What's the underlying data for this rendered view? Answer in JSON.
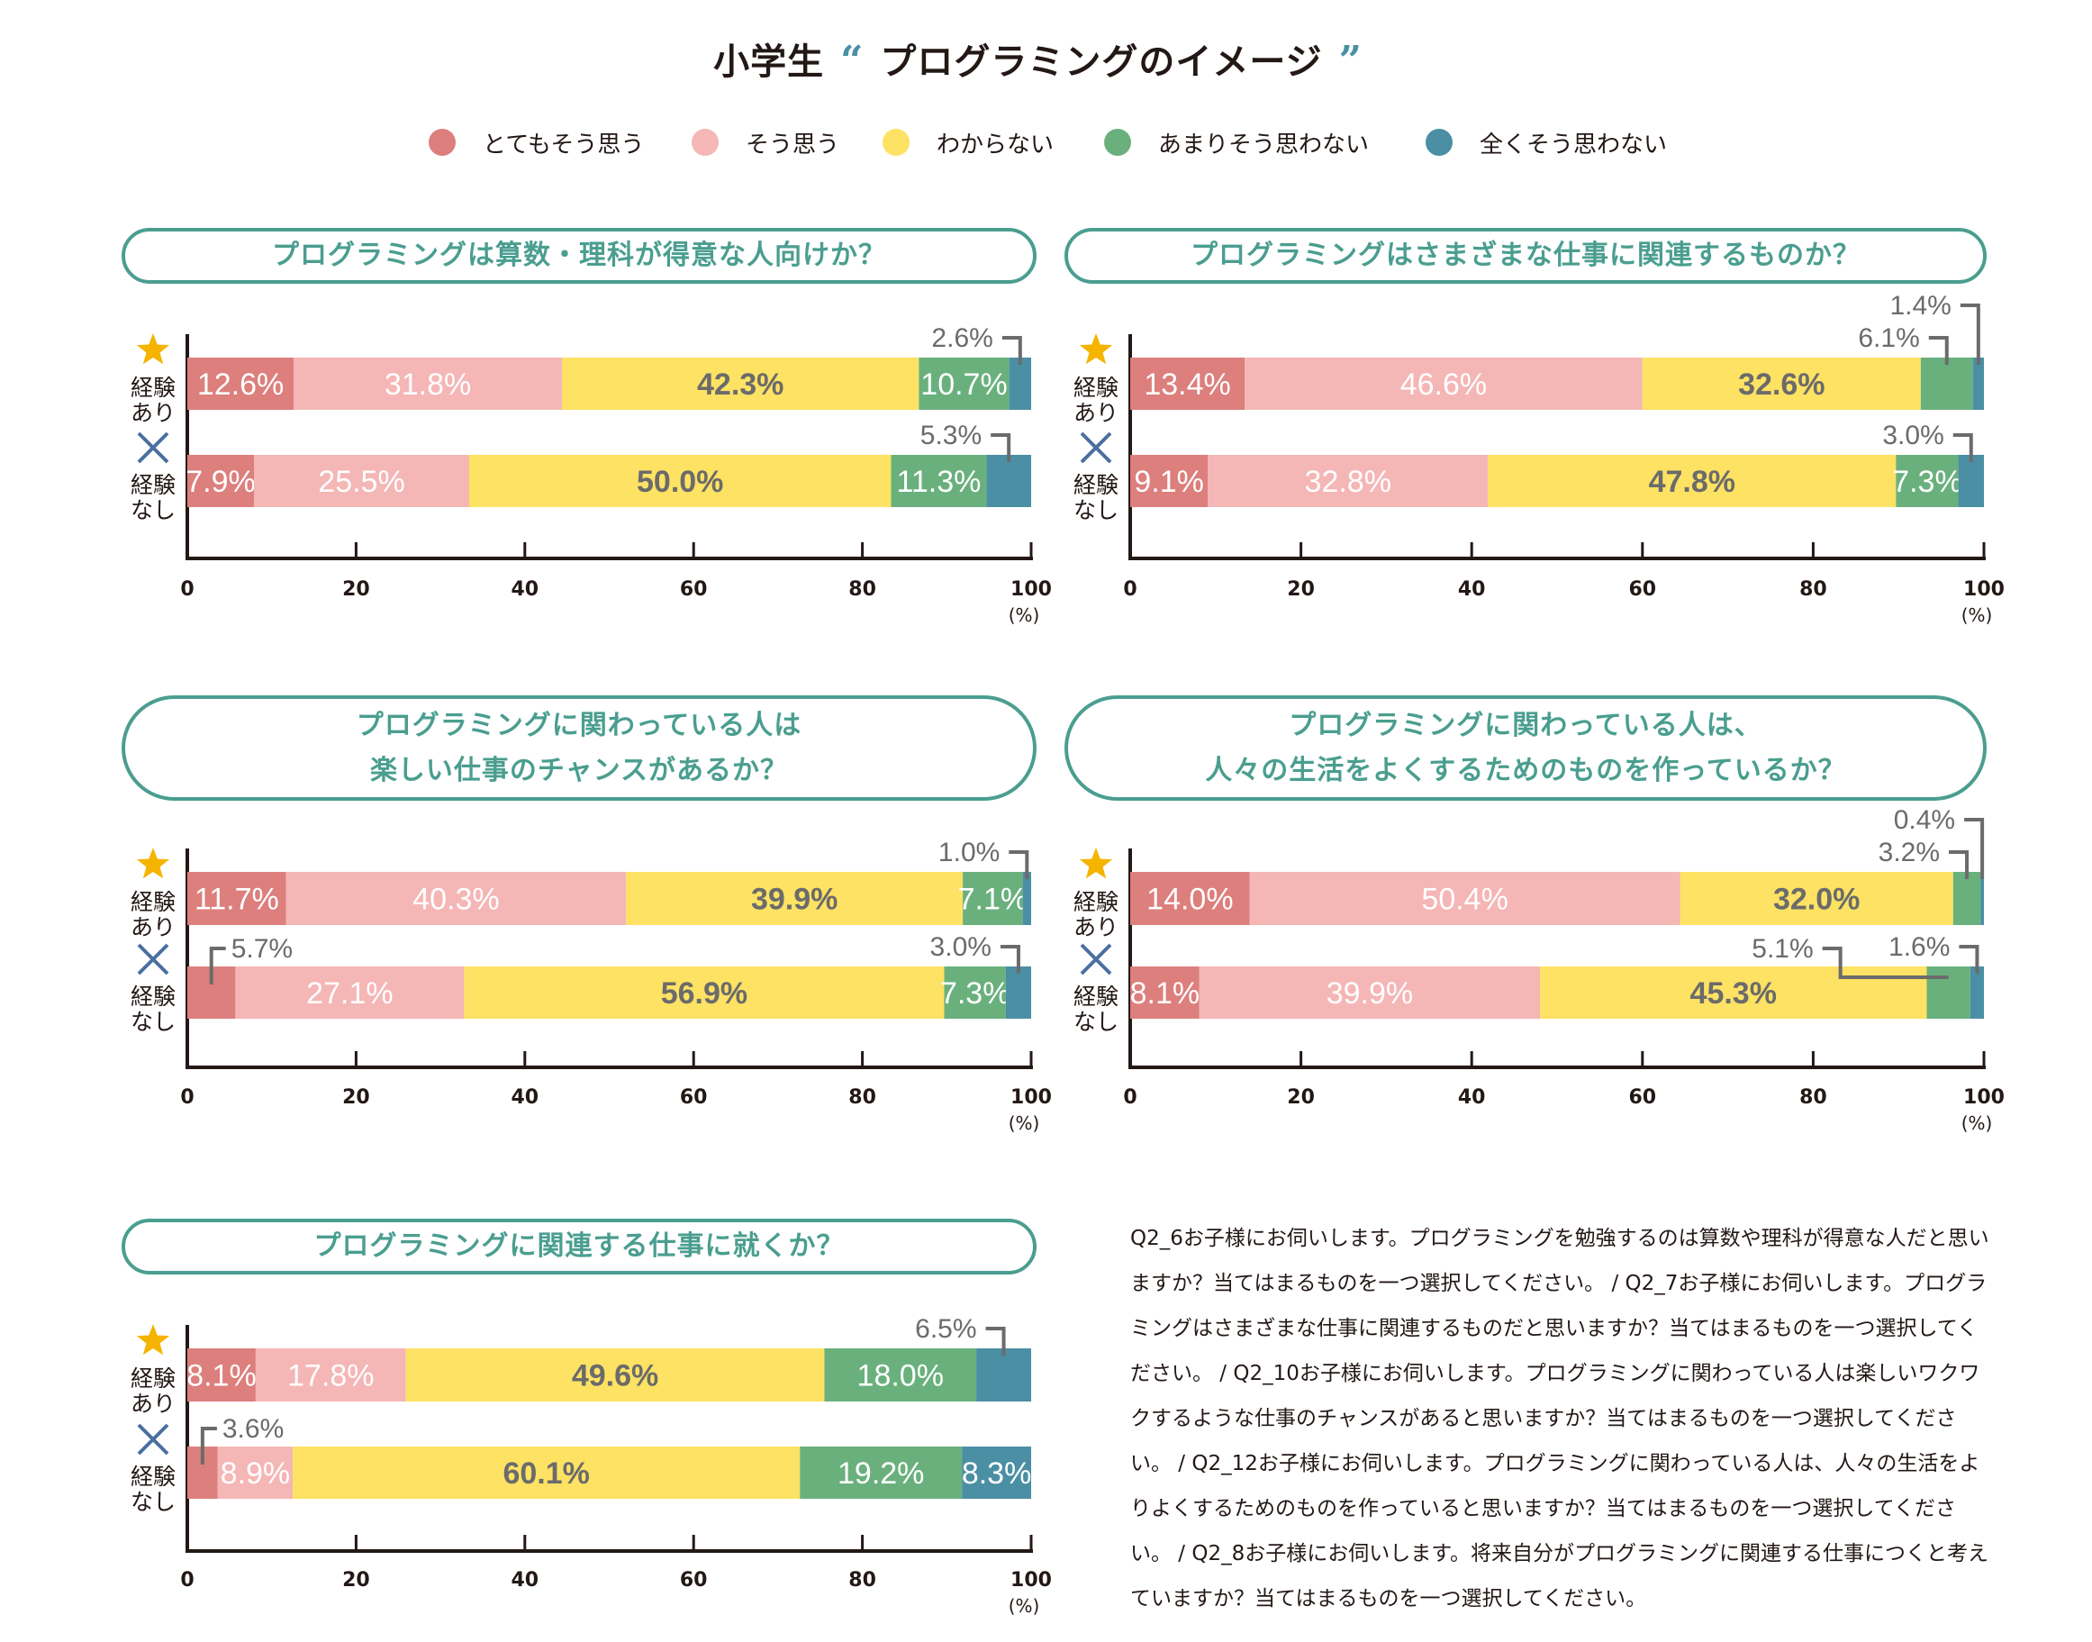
{
  "page": {
    "title_prefix": "小学生",
    "open_quote": "“",
    "title_main": "プログラミングのイメージ",
    "close_quote": "”"
  },
  "legend": [
    {
      "label": "とてもそう思う",
      "color": "#DC7F7D"
    },
    {
      "label": "そう思う",
      "color": "#F5B6B6"
    },
    {
      "label": "わからない",
      "color": "#FDE263"
    },
    {
      "label": "あまりそう思わない",
      "color": "#6AB07D"
    },
    {
      "label": "全くそう思わない",
      "color": "#4A8FA4"
    }
  ],
  "groups": {
    "experienced": {
      "icon": "star-icon",
      "line1": "経験",
      "line2": "あり",
      "icon_color": "#F5B400"
    },
    "inexperienced": {
      "icon": "cross-icon",
      "line1": "経験",
      "line2": "なし",
      "icon_color": "#4A6FA0"
    }
  },
  "axis": {
    "ticks": [
      "0",
      "20",
      "40",
      "60",
      "80",
      "100"
    ],
    "unit": "(%)"
  },
  "chart_data": [
    {
      "type": "bar",
      "stacked": true,
      "orientation": "horizontal",
      "title_lines": [
        "プログラミングは算数・理科が得意な人向けか？"
      ],
      "categories": [
        "経験あり",
        "経験なし"
      ],
      "series_names": [
        "とてもそう思う",
        "そう思う",
        "わからない",
        "あまりそう思わない",
        "全くそう思わない"
      ],
      "values": [
        [
          12.6,
          31.8,
          42.3,
          10.7,
          2.6
        ],
        [
          7.9,
          25.5,
          50.0,
          11.3,
          5.3
        ]
      ],
      "labels": [
        [
          "12.6%",
          "31.8%",
          "42.3%",
          "10.7%",
          "2.6%"
        ],
        [
          "7.9%",
          "25.5%",
          "50.0%",
          "11.3%",
          "5.3%"
        ]
      ],
      "xlim": [
        0,
        100
      ],
      "xlabel": "(%)"
    },
    {
      "type": "bar",
      "stacked": true,
      "orientation": "horizontal",
      "title_lines": [
        "プログラミングはさまざまな仕事に関連するものか？"
      ],
      "categories": [
        "経験あり",
        "経験なし"
      ],
      "series_names": [
        "とてもそう思う",
        "そう思う",
        "わからない",
        "あまりそう思わない",
        "全くそう思わない"
      ],
      "values": [
        [
          13.4,
          46.6,
          32.6,
          6.1,
          1.4
        ],
        [
          9.1,
          32.8,
          47.8,
          7.3,
          3.0
        ]
      ],
      "labels": [
        [
          "13.4%",
          "46.6%",
          "32.6%",
          "6.1%",
          "1.4%"
        ],
        [
          "9.1%",
          "32.8%",
          "47.8%",
          "7.3%",
          "3.0%"
        ]
      ],
      "xlim": [
        0,
        100
      ],
      "xlabel": "(%)"
    },
    {
      "type": "bar",
      "stacked": true,
      "orientation": "horizontal",
      "title_lines": [
        "プログラミングに関わっている人は",
        "楽しい仕事のチャンスがあるか？"
      ],
      "categories": [
        "経験あり",
        "経験なし"
      ],
      "series_names": [
        "とてもそう思う",
        "そう思う",
        "わからない",
        "あまりそう思わない",
        "全くそう思わない"
      ],
      "values": [
        [
          11.7,
          40.3,
          39.9,
          7.1,
          1.0
        ],
        [
          5.7,
          27.1,
          56.9,
          7.3,
          3.0
        ]
      ],
      "labels": [
        [
          "11.7%",
          "40.3%",
          "39.9%",
          "7.1%",
          "1.0%"
        ],
        [
          "5.7%",
          "27.1%",
          "56.9%",
          "7.3%",
          "3.0%"
        ]
      ],
      "xlim": [
        0,
        100
      ],
      "xlabel": "(%)"
    },
    {
      "type": "bar",
      "stacked": true,
      "orientation": "horizontal",
      "title_lines": [
        "プログラミングに関わっている人は、",
        "人々の生活をよくするためのものを作っているか？"
      ],
      "categories": [
        "経験あり",
        "経験なし"
      ],
      "series_names": [
        "とてもそう思う",
        "そう思う",
        "わからない",
        "あまりそう思わない",
        "全くそう思わない"
      ],
      "values": [
        [
          14.0,
          50.4,
          32.0,
          3.2,
          0.4
        ],
        [
          8.1,
          39.9,
          45.3,
          5.1,
          1.6
        ]
      ],
      "labels": [
        [
          "14.0%",
          "50.4%",
          "32.0%",
          "3.2%",
          "0.4%"
        ],
        [
          "8.1%",
          "39.9%",
          "45.3%",
          "5.1%",
          "1.6%"
        ]
      ],
      "xlim": [
        0,
        100
      ],
      "xlabel": "(%)"
    },
    {
      "type": "bar",
      "stacked": true,
      "orientation": "horizontal",
      "title_lines": [
        "プログラミングに関連する仕事に就くか？"
      ],
      "categories": [
        "経験あり",
        "経験なし"
      ],
      "series_names": [
        "とてもそう思う",
        "そう思う",
        "わからない",
        "あまりそう思わない",
        "全くそう思わない"
      ],
      "values": [
        [
          8.1,
          17.8,
          49.6,
          18.0,
          6.5
        ],
        [
          3.6,
          8.9,
          60.1,
          19.2,
          8.3
        ]
      ],
      "labels": [
        [
          "8.1%",
          "17.8%",
          "49.6%",
          "18.0%",
          "6.5%"
        ],
        [
          "3.6%",
          "8.9%",
          "60.1%",
          "19.2%",
          "8.3%"
        ]
      ],
      "xlim": [
        0,
        100
      ],
      "xlabel": "(%)"
    }
  ],
  "note": "Q2_6お子様にお伺いします。プログラミングを勉強するのは算数や理科が得意な人だと思いますか？当てはまるものを一つ選択してください。 / Q2_7お子様にお伺いします。プログラミングはさまざまな仕事に関連するものだと思いますか？当てはまるものを一つ選択してください。 / Q2_10お子様にお伺いします。プログラミングに関わっている人は楽しいワクワクするような仕事のチャンスがあると思いますか？当てはまるものを一つ選択してください。 / Q2_12お子様にお伺いします。プログラミングに関わっている人は、人々の生活をよりよくするためのものを作っていると思いますか？当てはまるものを一つ選択してください。 / Q2_8お子様にお伺いします。将来自分がプログラミングに関連する仕事につくと考えていますか？当てはまるものを一つ選択してください。",
  "colors": {
    "title_box": "#4A9E8F",
    "inside_label_light": "#FFFFFF",
    "inside_label_dark": "#6B6B6B",
    "annotation": "#6B6B6B",
    "axis": "#231815"
  }
}
